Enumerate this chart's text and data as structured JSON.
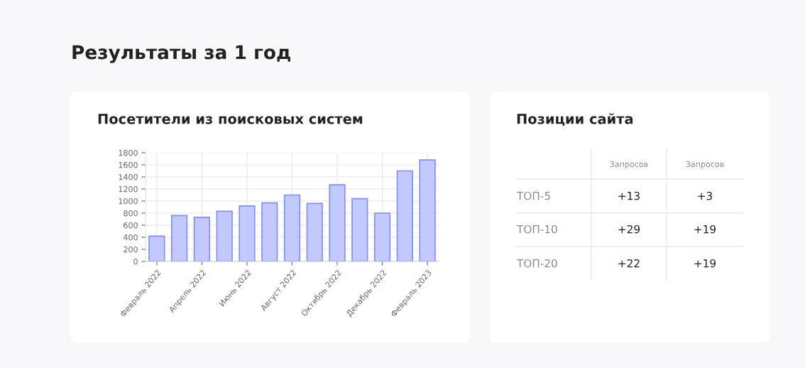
{
  "chart_data": [
    {
      "type": "bar",
      "title": "Посетители из поисковых систем",
      "annotations": [
        "Результаты за 1 год"
      ],
      "categories": [
        "Февраль 2022",
        null,
        "Апрель 2022",
        null,
        "Июнь 2022",
        null,
        "Август 2022",
        null,
        "Октябрь 2022",
        null,
        "Декабрь 2022",
        null,
        "Февраль 2023"
      ],
      "values": [
        420,
        760,
        730,
        830,
        920,
        970,
        1100,
        960,
        1270,
        1040,
        800,
        1500,
        1680
      ],
      "color": "#c2c9fc",
      "ylim": [
        0,
        1800
      ],
      "yticks": [
        0,
        200,
        400,
        600,
        800,
        1000,
        1200,
        1400,
        1600,
        1800
      ],
      "grid": true
    },
    {
      "type": "other",
      "title": "Позиции сайта",
      "categories": [
        "Запросов",
        "Запросов"
      ],
      "y_categories": [
        "ТОП-5",
        "ТОП-10",
        "ТОП-20"
      ],
      "cell_labels": [
        [
          "+13",
          "+3"
        ],
        [
          "+29",
          "+19"
        ],
        [
          "+22",
          "+19"
        ]
      ]
    }
  ]
}
